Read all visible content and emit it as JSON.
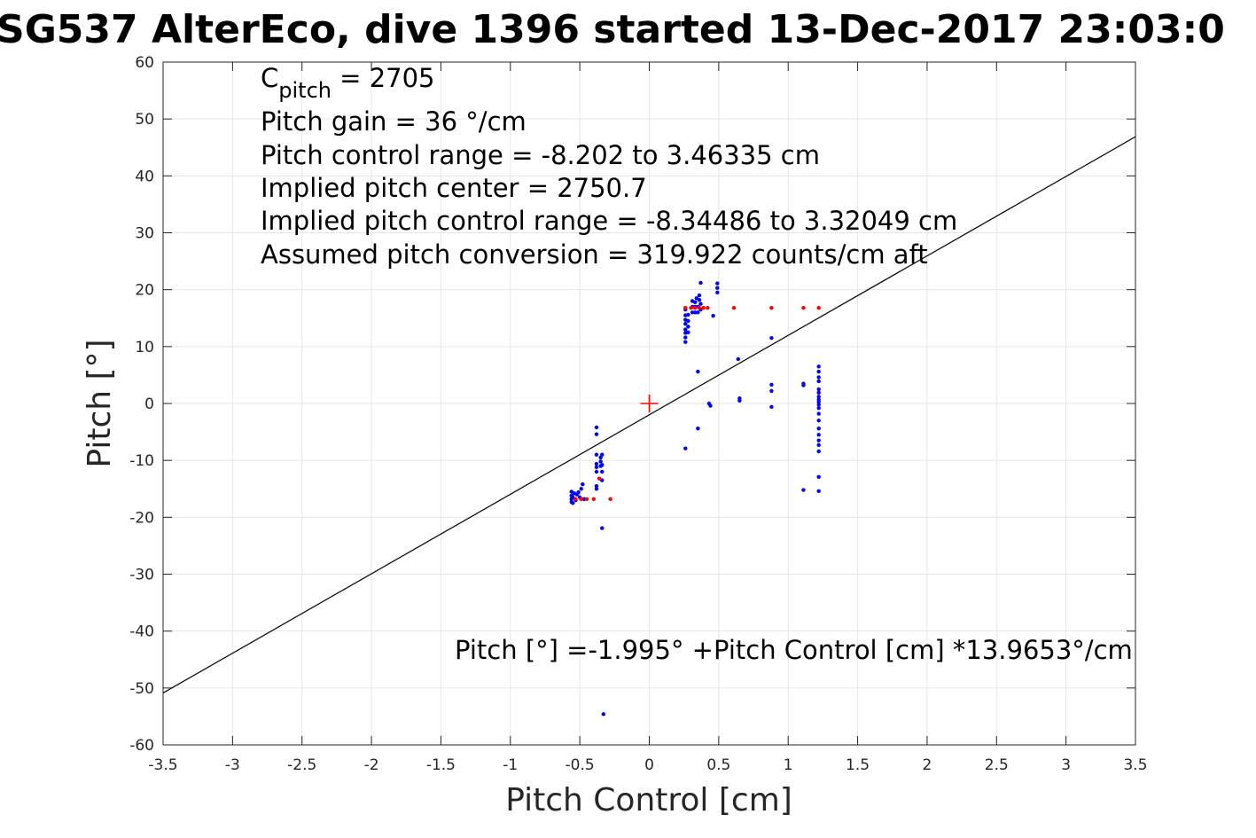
{
  "chart_data": {
    "type": "scatter",
    "title": "SG537 AlterEco, dive 1396 started 13-Dec-2017 23:03:0",
    "xlabel": "Pitch Control [cm]",
    "ylabel": "Pitch [°]",
    "xlim": [
      -3.5,
      3.5
    ],
    "ylim": [
      -60,
      60
    ],
    "xticks": [
      -3.5,
      -3,
      -2.5,
      -2,
      -1.5,
      -1,
      -0.5,
      0,
      0.5,
      1,
      1.5,
      2,
      2.5,
      3,
      3.5
    ],
    "yticks": [
      -60,
      -50,
      -40,
      -30,
      -20,
      -10,
      0,
      10,
      20,
      30,
      40,
      50,
      60
    ],
    "xtick_labels": [
      "-3.5",
      "-3",
      "-2.5",
      "-2",
      "-1.5",
      "-1",
      "-0.5",
      "0",
      "0.5",
      "1",
      "1.5",
      "2",
      "2.5",
      "3",
      "3.5"
    ],
    "ytick_labels": [
      "-60",
      "-50",
      "-40",
      "-30",
      "-20",
      "-10",
      "0",
      "10",
      "20",
      "30",
      "40",
      "50",
      "60"
    ],
    "grid": true,
    "annotations": {
      "cpitch_base": "C",
      "cpitch_sub": "pitch",
      "cpitch_value": " = 2705",
      "lines": [
        "Pitch gain = 36 °/cm",
        "Pitch control range = -8.202 to 3.46335 cm",
        "Implied pitch center = 2750.7",
        "Implied pitch control range = -8.34486 to 3.32049 cm",
        "Assumed pitch conversion = 319.922 counts/cm aft"
      ],
      "equation": "Pitch [°] =-1.995° +Pitch Control [cm] *13.9653°/cm"
    },
    "fit_line": {
      "intercept": -1.995,
      "slope": 13.9653,
      "color": "#000000"
    },
    "center_marker": {
      "x": 0,
      "y": 0,
      "color": "#ff0000"
    },
    "series": [
      {
        "color": "#0000ff",
        "points": [
          [
            -0.56,
            -15.5
          ],
          [
            -0.56,
            -16.2
          ],
          [
            -0.56,
            -16.8
          ],
          [
            -0.56,
            -17.3
          ],
          [
            -0.55,
            -16.5
          ],
          [
            -0.54,
            -15.8
          ],
          [
            -0.53,
            -17.0
          ],
          [
            -0.52,
            -16.0
          ],
          [
            -0.51,
            -15.6
          ],
          [
            -0.5,
            -16.5
          ],
          [
            -0.49,
            -15.0
          ],
          [
            -0.48,
            -14.2
          ],
          [
            -0.47,
            -16.8
          ],
          [
            -0.55,
            -17.5
          ],
          [
            -0.38,
            -4.2
          ],
          [
            -0.38,
            -5.4
          ],
          [
            -0.38,
            -9.0
          ],
          [
            -0.38,
            -10.6
          ],
          [
            -0.38,
            -11.2
          ],
          [
            -0.38,
            -12.0
          ],
          [
            -0.38,
            -14.5
          ],
          [
            -0.38,
            -15.0
          ],
          [
            -0.35,
            -9.5
          ],
          [
            -0.35,
            -10.2
          ],
          [
            -0.35,
            -11.0
          ],
          [
            -0.34,
            -9.0
          ],
          [
            -0.34,
            -10.8
          ],
          [
            -0.34,
            -12.0
          ],
          [
            -0.34,
            -13.5
          ],
          [
            -0.34,
            -21.9
          ],
          [
            -0.33,
            -54.6
          ],
          [
            0.26,
            10.8
          ],
          [
            0.26,
            11.6
          ],
          [
            0.26,
            12.4
          ],
          [
            0.26,
            13.0
          ],
          [
            0.26,
            14.0
          ],
          [
            0.26,
            14.7
          ],
          [
            0.26,
            15.5
          ],
          [
            0.26,
            16.5
          ],
          [
            0.28,
            12.5
          ],
          [
            0.28,
            13.5
          ],
          [
            0.28,
            14.5
          ],
          [
            0.28,
            15.6
          ],
          [
            0.26,
            -7.9
          ],
          [
            0.31,
            16.0
          ],
          [
            0.31,
            17.0
          ],
          [
            0.31,
            18.0
          ],
          [
            0.33,
            16.0
          ],
          [
            0.33,
            17.0
          ],
          [
            0.33,
            17.8
          ],
          [
            0.34,
            18.5
          ],
          [
            0.35,
            16.0
          ],
          [
            0.35,
            17.0
          ],
          [
            0.36,
            18.2
          ],
          [
            0.36,
            19.0
          ],
          [
            0.37,
            16.5
          ],
          [
            0.37,
            17.5
          ],
          [
            0.37,
            21.2
          ],
          [
            0.35,
            5.6
          ],
          [
            0.35,
            -4.4
          ],
          [
            0.43,
            0.0
          ],
          [
            0.44,
            -0.4
          ],
          [
            0.46,
            15.4
          ],
          [
            0.49,
            19.5
          ],
          [
            0.49,
            20.3
          ],
          [
            0.49,
            21.1
          ],
          [
            0.64,
            7.8
          ],
          [
            0.65,
            0.9
          ],
          [
            0.65,
            0.5
          ],
          [
            0.88,
            11.5
          ],
          [
            0.88,
            3.3
          ],
          [
            0.88,
            2.2
          ],
          [
            0.88,
            -0.6
          ],
          [
            1.11,
            3.5
          ],
          [
            1.11,
            3.2
          ],
          [
            1.11,
            -15.2
          ],
          [
            1.22,
            6.5
          ],
          [
            1.22,
            5.6
          ],
          [
            1.22,
            4.6
          ],
          [
            1.22,
            3.9
          ],
          [
            1.22,
            2.5
          ],
          [
            1.22,
            1.9
          ],
          [
            1.22,
            1.2
          ],
          [
            1.22,
            0.7
          ],
          [
            1.22,
            0.3
          ],
          [
            1.22,
            -0.2
          ],
          [
            1.22,
            -0.8
          ],
          [
            1.22,
            -1.8
          ],
          [
            1.22,
            -3.0
          ],
          [
            1.22,
            -4.4
          ],
          [
            1.22,
            -5.5
          ],
          [
            1.22,
            -6.5
          ],
          [
            1.22,
            -7.3
          ],
          [
            1.22,
            -8.4
          ],
          [
            1.22,
            -12.9
          ],
          [
            1.22,
            -15.4
          ]
        ]
      },
      {
        "color": "#ff0000",
        "points": [
          [
            -0.53,
            -16.8
          ],
          [
            -0.49,
            -16.8
          ],
          [
            -0.45,
            -16.8
          ],
          [
            -0.4,
            -16.8
          ],
          [
            -0.28,
            -16.8
          ],
          [
            -0.36,
            -13.2
          ],
          [
            0.26,
            16.8
          ],
          [
            0.3,
            16.8
          ],
          [
            0.33,
            16.8
          ],
          [
            0.36,
            16.8
          ],
          [
            0.39,
            16.8
          ],
          [
            0.42,
            16.8
          ],
          [
            0.61,
            16.8
          ],
          [
            0.88,
            16.8
          ],
          [
            1.11,
            16.8
          ],
          [
            1.22,
            16.8
          ]
        ]
      }
    ]
  }
}
